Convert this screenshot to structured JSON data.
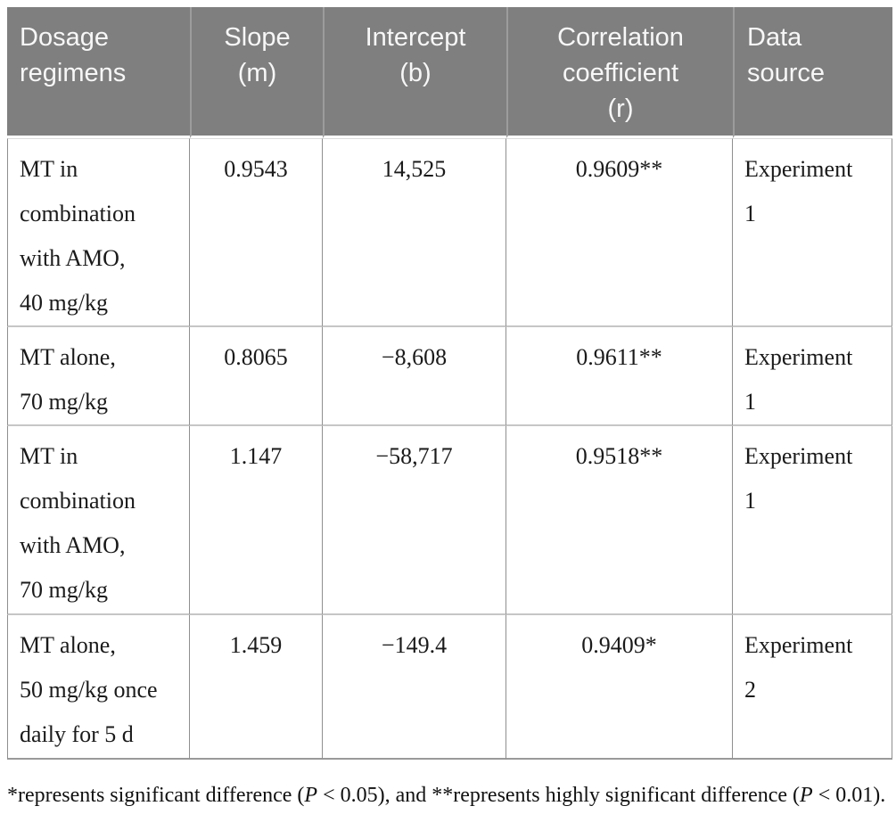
{
  "table": {
    "columns": [
      {
        "id": "dosage-regimens",
        "label": "Dosage regimens",
        "lines": [
          "Dosage",
          "regimens"
        ],
        "align": "left"
      },
      {
        "id": "slope",
        "label": "Slope (m)",
        "lines": [
          "Slope",
          "(m)"
        ],
        "align": "center"
      },
      {
        "id": "intercept",
        "label": "Intercept (b)",
        "lines": [
          "Intercept",
          "(b)"
        ],
        "align": "center"
      },
      {
        "id": "correlation-coefficient",
        "label": "Correlation coefficient (r)",
        "lines": [
          "Correlation",
          "coefficient",
          "(r)"
        ],
        "align": "center"
      },
      {
        "id": "data-source",
        "label": "Data source",
        "lines": [
          "Data",
          "source"
        ],
        "align": "left"
      }
    ],
    "rows": [
      {
        "cells": [
          [
            "MT in",
            "combination",
            "with AMO,",
            "40 mg/kg"
          ],
          [
            "0.9543"
          ],
          [
            "14,525"
          ],
          [
            "0.9609**"
          ],
          [
            "Experiment",
            "1"
          ]
        ]
      },
      {
        "cells": [
          [
            "MT alone,",
            "70 mg/kg"
          ],
          [
            "0.8065"
          ],
          [
            "−8,608"
          ],
          [
            "0.9611**"
          ],
          [
            "Experiment",
            "1"
          ]
        ]
      },
      {
        "cells": [
          [
            "MT in",
            "combination",
            "with AMO,",
            "70 mg/kg"
          ],
          [
            "1.147"
          ],
          [
            "−58,717"
          ],
          [
            "0.9518**"
          ],
          [
            "Experiment",
            "1"
          ]
        ]
      },
      {
        "cells": [
          [
            "MT alone,",
            "50 mg/kg once",
            "daily for 5 d"
          ],
          [
            "1.459"
          ],
          [
            "−149.4"
          ],
          [
            "0.9409*"
          ],
          [
            "Experiment",
            "2"
          ]
        ]
      }
    ]
  },
  "footnote": {
    "part1": "*represents significant difference (",
    "p1": "P",
    "part2": " < 0.05), and **represents highly significant difference (",
    "p2": "P",
    "part3": " < 0.01)."
  },
  "colors": {
    "header_bg": "#7f7f7f",
    "header_text": "#f7f7f7",
    "header_separator": "#9c9c9c",
    "body_text": "#1a1a1a",
    "vertical_grid_line": "#8f8f8f",
    "horizontal_grid_line": "#c6c6c6",
    "table_bottom_border": "#9a9a9a"
  }
}
